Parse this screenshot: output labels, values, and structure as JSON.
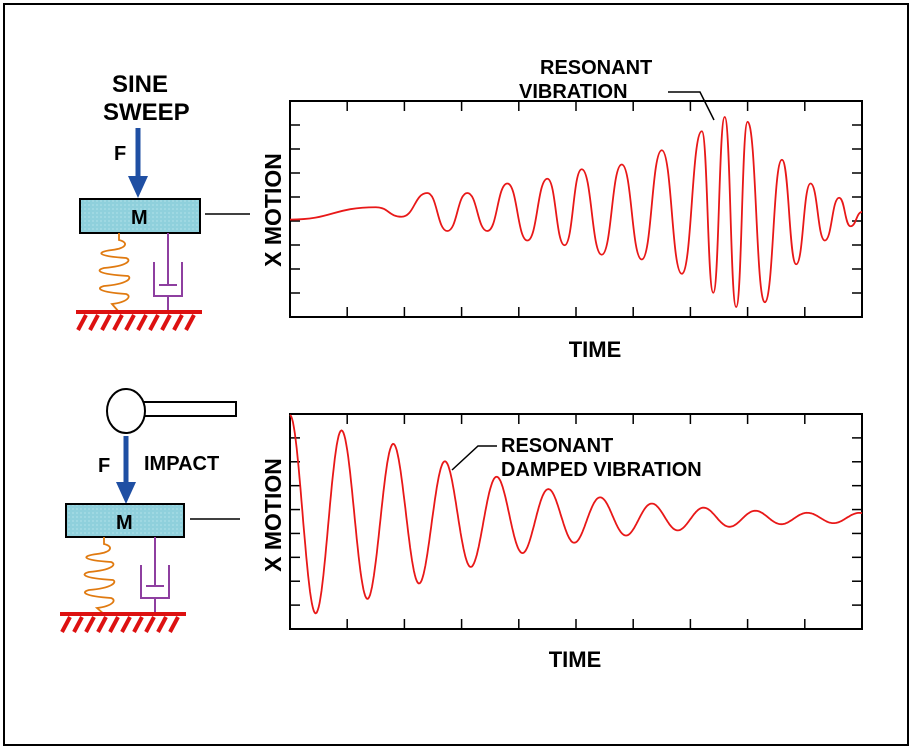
{
  "colors": {
    "mass_fill": "#8fd0dc",
    "force_arrow": "#1f4fa3",
    "spring": "#e07a10",
    "damper": "#8e3fa0",
    "ground_hatch": "#dd1111",
    "signal": "#e81818",
    "text": "#000000"
  },
  "icons": [
    "mass-block",
    "spring-coil",
    "damper",
    "ground-hatch",
    "force-arrow",
    "impact-hammer"
  ],
  "top_panel": {
    "excitation_line1": "SINE",
    "excitation_line2": "SWEEP",
    "force_label": "F",
    "mass_label": "M",
    "ylabel": "X MOTION",
    "xlabel": "TIME",
    "annotation_line1": "RESONANT",
    "annotation_line2": "VIBRATION"
  },
  "bottom_panel": {
    "force_label": "F",
    "impact_label": "IMPACT",
    "mass_label": "M",
    "ylabel": "X MOTION",
    "xlabel": "TIME",
    "annotation_line1": "RESONANT",
    "annotation_line2": "DAMPED VIBRATION"
  },
  "chart_data": [
    {
      "type": "line",
      "x": [
        0,
        1,
        2,
        3,
        4,
        5,
        6,
        7,
        8,
        9,
        10
      ],
      "series": [
        {
          "peak_times": [
            0.15,
            0.24,
            0.31,
            0.38,
            0.45,
            0.51,
            0.58,
            0.65,
            0.72,
            0.76,
            0.8,
            0.86,
            0.91,
            0.96
          ],
          "amplitudes": [
            0.05,
            0.2,
            0.2,
            0.3,
            0.35,
            0.45,
            0.5,
            0.65,
            0.85,
            1.0,
            0.95,
            0.55,
            0.3,
            0.15
          ]
        }
      ],
      "xlabel": "TIME",
      "ylabel": "X MOTION"
    },
    {
      "type": "line",
      "series": [
        {
          "decay_amplitudes": [
            1.0,
            0.85,
            0.72,
            0.55,
            0.4,
            0.28,
            0.2,
            0.14,
            0.1,
            0.07,
            0.05
          ]
        }
      ],
      "xlabel": "TIME",
      "ylabel": "X MOTION"
    }
  ]
}
